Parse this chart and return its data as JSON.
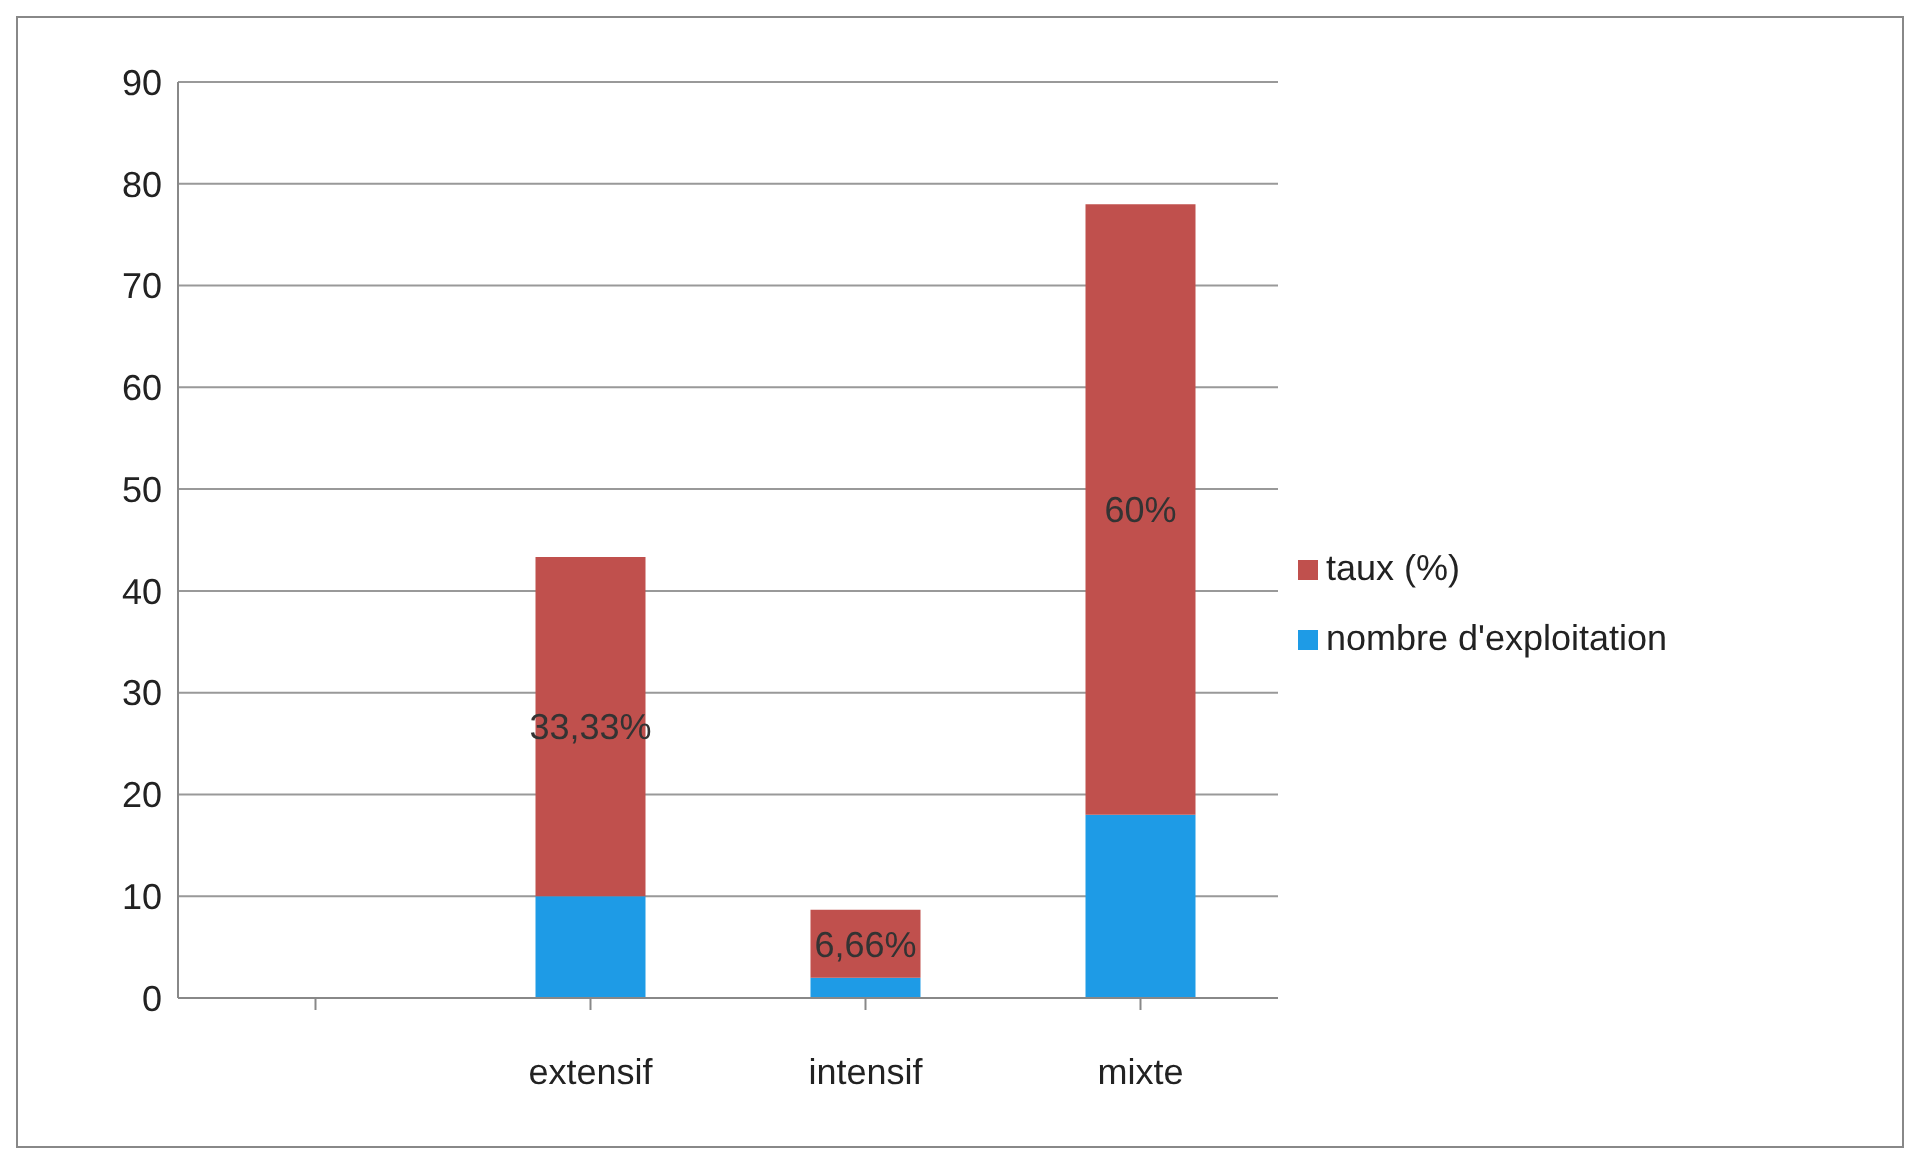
{
  "chart_data": {
    "type": "bar",
    "stacked": true,
    "categories": [
      null,
      "extensif",
      "intensif",
      "mixte"
    ],
    "series": [
      {
        "name": "nombre d'exploitation",
        "color": "#1e9be6",
        "values": [
          null,
          10,
          2,
          18
        ]
      },
      {
        "name": "taux (%)",
        "color": "#c0504d",
        "values": [
          null,
          33.33,
          6.66,
          60
        ],
        "value_labels": [
          null,
          "33,33%",
          "6,66%",
          "60%"
        ]
      }
    ],
    "ylim": [
      0,
      90
    ],
    "yticks": [
      0,
      10,
      20,
      30,
      40,
      50,
      60,
      70,
      80,
      90
    ],
    "grid": "y",
    "legend": "right"
  }
}
